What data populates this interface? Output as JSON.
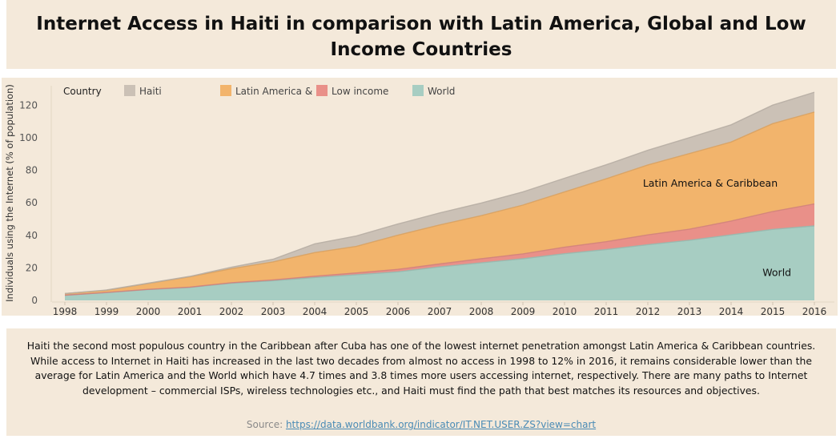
{
  "title": "Internet Access in Haiti in comparison with Latin America, Global and Low Income Countries",
  "description": "Haiti the second most populous country in the Caribbean after Cuba has one of the lowest internet penetration amongst Latin America & Caribbean countries. While access to Internet in Haiti has increased in the last two decades from almost no access in 1998 to 12% in 2016, it remains considerable lower than the average for Latin America and the World which have 4.7 times and 3.8 times more users accessing internet, respectively. There are many paths to Internet development – commercial ISPs, wireless technologies etc., and Haiti must find the path that best matches its resources and objectives.",
  "source_label": "Source:",
  "source_link": "https://data.worldbank.org/indicator/IT.NET.USER.ZS?view=chart",
  "legend": {
    "title": "Country",
    "items": [
      {
        "label": "Haiti",
        "color": "#cbc1b6"
      },
      {
        "label": "Latin America & ..",
        "color": "#f2b46c"
      },
      {
        "label": "Low income",
        "color": "#e99089"
      },
      {
        "label": "World",
        "color": "#a7cdc2"
      }
    ]
  },
  "annotations": [
    {
      "text": "Latin America & Caribbean",
      "x": 2013.5,
      "y": 72
    },
    {
      "text": "World",
      "x": 2015.1,
      "y": 17
    }
  ],
  "chart_data": {
    "type": "area",
    "stacked": true,
    "x": [
      1998,
      1999,
      2000,
      2001,
      2002,
      2003,
      2004,
      2005,
      2006,
      2007,
      2008,
      2009,
      2010,
      2011,
      2012,
      2013,
      2014,
      2015,
      2016
    ],
    "series": [
      {
        "name": "World",
        "values": [
          3.2,
          4.8,
          6.7,
          8.0,
          10.6,
          12.1,
          14.1,
          15.8,
          17.6,
          20.6,
          23.1,
          25.6,
          28.7,
          31.3,
          34.3,
          37.0,
          40.3,
          43.7,
          45.8
        ]
      },
      {
        "name": "Low income",
        "values": [
          0.0,
          0.1,
          0.1,
          0.2,
          0.3,
          0.5,
          0.8,
          1.1,
          1.5,
          1.8,
          2.5,
          3.0,
          4.0,
          4.8,
          6.0,
          6.8,
          8.5,
          11.0,
          13.5
        ]
      },
      {
        "name": "Latin America & Caribbean",
        "values": [
          1.0,
          1.3,
          3.6,
          6.3,
          8.6,
          11.1,
          14.5,
          16.3,
          21.0,
          24.0,
          26.5,
          30.0,
          34.0,
          38.7,
          43.0,
          46.5,
          48.6,
          54.0,
          56.5
        ]
      },
      {
        "name": "Haiti",
        "values": [
          0.0,
          0.2,
          0.2,
          0.3,
          0.9,
          1.6,
          5.4,
          6.4,
          6.9,
          7.4,
          7.8,
          8.1,
          8.4,
          8.6,
          9.0,
          9.8,
          10.6,
          11.4,
          12.2
        ]
      }
    ],
    "xlabel": "",
    "ylabel": "Individuals using the Internet (% of population)",
    "yticks": [
      0,
      20,
      40,
      60,
      80,
      100,
      120
    ],
    "ylim": [
      0,
      135
    ],
    "grid": false,
    "legend_position": "top"
  }
}
